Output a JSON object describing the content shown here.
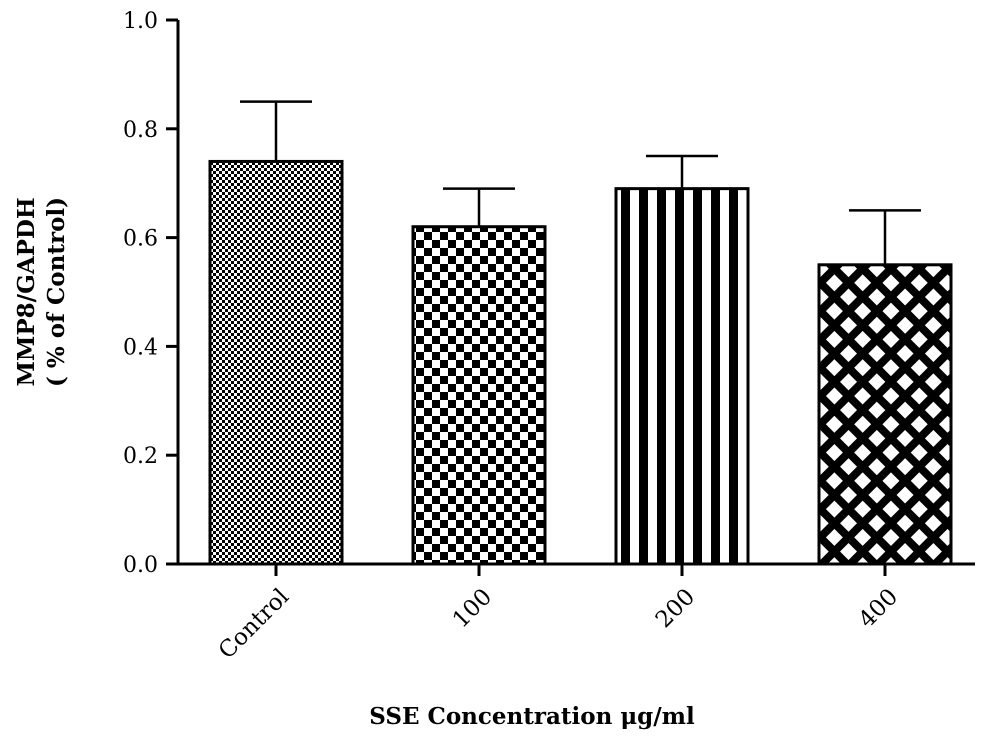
{
  "chart_data": {
    "type": "bar",
    "categories": [
      "Control",
      "100",
      "200",
      "400"
    ],
    "values": [
      0.74,
      0.62,
      0.69,
      0.55
    ],
    "errors": [
      0.11,
      0.07,
      0.06,
      0.1
    ],
    "patterns": [
      "fine-checker",
      "checker",
      "vertical-stripes",
      "diamond-lattice"
    ],
    "xlabel": "SSE Concentration μg/ml",
    "ylabel_line1": "MMP8/GAPDH",
    "ylabel_line2": "( % of Control)",
    "ylim": [
      0,
      1.0
    ],
    "yticks": [
      "0.0",
      "0.2",
      "0.4",
      "0.6",
      "0.8",
      "1.0"
    ],
    "ytick_values": [
      0,
      0.2,
      0.4,
      0.6,
      0.8,
      1.0
    ],
    "grid": false,
    "colors": {
      "ink": "#000000",
      "fill_bg": "#ffffff"
    }
  }
}
